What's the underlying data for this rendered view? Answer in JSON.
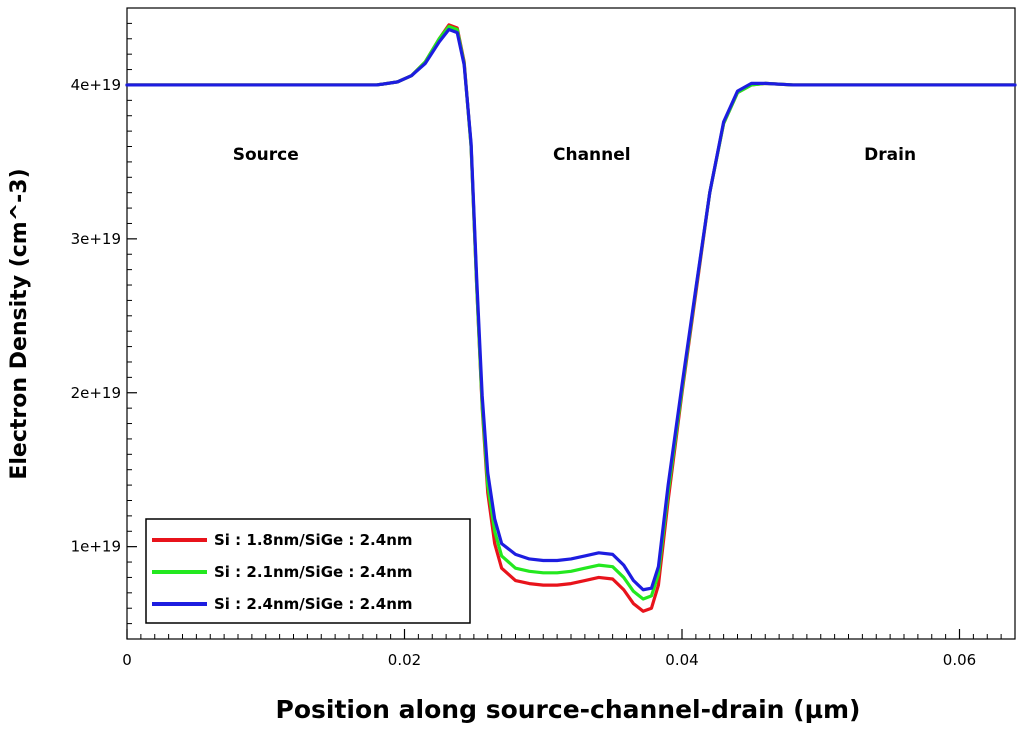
{
  "chart_data": {
    "type": "line",
    "title": "",
    "xlabel": "Position along source-channel-drain (µm)",
    "ylabel": "Electron Density (cm^-3)",
    "xlim": [
      0,
      0.064
    ],
    "ylim": [
      4e+18,
      4.5e+19
    ],
    "x_ticks": [
      {
        "value": 0,
        "label": "0"
      },
      {
        "value": 0.02,
        "label": "0.02"
      },
      {
        "value": 0.04,
        "label": "0.04"
      },
      {
        "value": 0.06,
        "label": "0.06"
      }
    ],
    "y_ticks": [
      {
        "value": 1e+19,
        "label": "1e+19"
      },
      {
        "value": 2e+19,
        "label": "2e+19"
      },
      {
        "value": 3e+19,
        "label": "3e+19"
      },
      {
        "value": 4e+19,
        "label": "4e+19"
      }
    ],
    "annotations": [
      {
        "text": "Source",
        "x": 0.01,
        "y": 3.55e+19
      },
      {
        "text": "Channel",
        "x": 0.0335,
        "y": 3.55e+19
      },
      {
        "text": "Drain",
        "x": 0.055,
        "y": 3.55e+19
      }
    ],
    "legend_position": "bottom-left",
    "grid": false,
    "series": [
      {
        "name": "Si : 1.8nm/SiGe : 2.4nm",
        "color": "#e8131b",
        "points": [
          [
            0,
            4e+19
          ],
          [
            0.018,
            4e+19
          ],
          [
            0.0195,
            4.02e+19
          ],
          [
            0.0205,
            4.06e+19
          ],
          [
            0.0215,
            4.15e+19
          ],
          [
            0.0225,
            4.3e+19
          ],
          [
            0.0232,
            4.39e+19
          ],
          [
            0.0238,
            4.37e+19
          ],
          [
            0.0243,
            4.15e+19
          ],
          [
            0.0248,
            3.6e+19
          ],
          [
            0.0252,
            2.7e+19
          ],
          [
            0.0256,
            1.9e+19
          ],
          [
            0.026,
            1.35e+19
          ],
          [
            0.0265,
            1.02e+19
          ],
          [
            0.027,
            8.6e+18
          ],
          [
            0.028,
            7.8e+18
          ],
          [
            0.029,
            7.6e+18
          ],
          [
            0.03,
            7.5e+18
          ],
          [
            0.031,
            7.5e+18
          ],
          [
            0.032,
            7.6e+18
          ],
          [
            0.033,
            7.8e+18
          ],
          [
            0.034,
            8e+18
          ],
          [
            0.035,
            7.9e+18
          ],
          [
            0.0358,
            7.2e+18
          ],
          [
            0.0365,
            6.3e+18
          ],
          [
            0.0372,
            5.8e+18
          ],
          [
            0.0378,
            6e+18
          ],
          [
            0.0383,
            7.5e+18
          ],
          [
            0.039,
            1.3e+19
          ],
          [
            0.04,
            2e+19
          ],
          [
            0.041,
            2.65e+19
          ],
          [
            0.042,
            3.3e+19
          ],
          [
            0.043,
            3.75e+19
          ],
          [
            0.044,
            3.95e+19
          ],
          [
            0.045,
            4e+19
          ],
          [
            0.046,
            4.01e+19
          ],
          [
            0.048,
            4e+19
          ],
          [
            0.064,
            4e+19
          ]
        ]
      },
      {
        "name": "Si : 2.1nm/SiGe : 2.4nm",
        "color": "#23e81f",
        "points": [
          [
            0,
            4e+19
          ],
          [
            0.018,
            4e+19
          ],
          [
            0.0195,
            4.02e+19
          ],
          [
            0.0205,
            4.06e+19
          ],
          [
            0.0215,
            4.15e+19
          ],
          [
            0.0225,
            4.3e+19
          ],
          [
            0.0232,
            4.38e+19
          ],
          [
            0.0238,
            4.36e+19
          ],
          [
            0.0243,
            4.14e+19
          ],
          [
            0.0248,
            3.6e+19
          ],
          [
            0.0252,
            2.7e+19
          ],
          [
            0.0256,
            1.92e+19
          ],
          [
            0.026,
            1.4e+19
          ],
          [
            0.0265,
            1.1e+19
          ],
          [
            0.027,
            9.4e+18
          ],
          [
            0.028,
            8.6e+18
          ],
          [
            0.029,
            8.4e+18
          ],
          [
            0.03,
            8.3e+18
          ],
          [
            0.031,
            8.3e+18
          ],
          [
            0.032,
            8.4e+18
          ],
          [
            0.033,
            8.6e+18
          ],
          [
            0.034,
            8.8e+18
          ],
          [
            0.035,
            8.7e+18
          ],
          [
            0.0358,
            8e+18
          ],
          [
            0.0365,
            7.1e+18
          ],
          [
            0.0372,
            6.6e+18
          ],
          [
            0.0378,
            6.8e+18
          ],
          [
            0.0383,
            8.2e+18
          ],
          [
            0.039,
            1.35e+19
          ],
          [
            0.04,
            2.02e+19
          ],
          [
            0.041,
            2.67e+19
          ],
          [
            0.042,
            3.3e+19
          ],
          [
            0.043,
            3.75e+19
          ],
          [
            0.044,
            3.95e+19
          ],
          [
            0.045,
            4e+19
          ],
          [
            0.046,
            4.01e+19
          ],
          [
            0.048,
            4e+19
          ],
          [
            0.064,
            4e+19
          ]
        ]
      },
      {
        "name": "Si : 2.4nm/SiGe : 2.4nm",
        "color": "#1d1de0",
        "points": [
          [
            0,
            4e+19
          ],
          [
            0.018,
            4e+19
          ],
          [
            0.0195,
            4.02e+19
          ],
          [
            0.0205,
            4.06e+19
          ],
          [
            0.0215,
            4.14e+19
          ],
          [
            0.0225,
            4.28e+19
          ],
          [
            0.0232,
            4.36e+19
          ],
          [
            0.0238,
            4.34e+19
          ],
          [
            0.0243,
            4.13e+19
          ],
          [
            0.0248,
            3.62e+19
          ],
          [
            0.0252,
            2.75e+19
          ],
          [
            0.0256,
            1.98e+19
          ],
          [
            0.026,
            1.48e+19
          ],
          [
            0.0265,
            1.18e+19
          ],
          [
            0.027,
            1.02e+19
          ],
          [
            0.028,
            9.5e+18
          ],
          [
            0.029,
            9.2e+18
          ],
          [
            0.03,
            9.1e+18
          ],
          [
            0.031,
            9.1e+18
          ],
          [
            0.032,
            9.2e+18
          ],
          [
            0.033,
            9.4e+18
          ],
          [
            0.034,
            9.6e+18
          ],
          [
            0.035,
            9.5e+18
          ],
          [
            0.0358,
            8.8e+18
          ],
          [
            0.0365,
            7.8e+18
          ],
          [
            0.0372,
            7.2e+18
          ],
          [
            0.0378,
            7.3e+18
          ],
          [
            0.0383,
            8.7e+18
          ],
          [
            0.039,
            1.4e+19
          ],
          [
            0.04,
            2.05e+19
          ],
          [
            0.041,
            2.68e+19
          ],
          [
            0.042,
            3.3e+19
          ],
          [
            0.043,
            3.76e+19
          ],
          [
            0.044,
            3.96e+19
          ],
          [
            0.045,
            4.01e+19
          ],
          [
            0.046,
            4.01e+19
          ],
          [
            0.048,
            4e+19
          ],
          [
            0.064,
            4e+19
          ]
        ]
      }
    ]
  }
}
